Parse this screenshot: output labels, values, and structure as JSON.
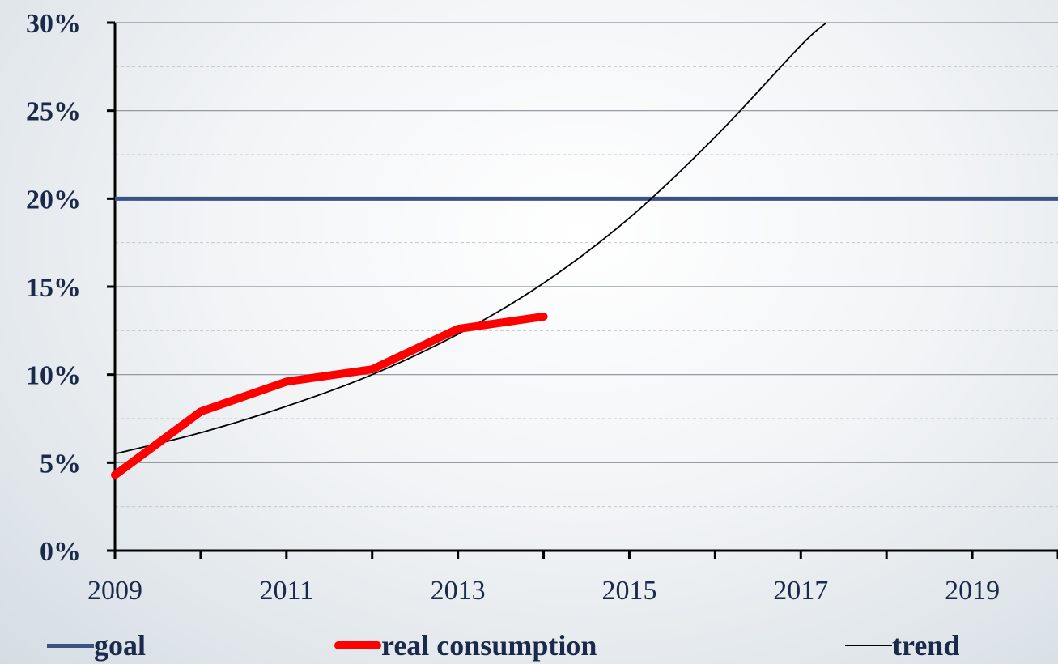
{
  "chart_data": {
    "type": "line",
    "xlim": [
      2009,
      2020
    ],
    "ylim": [
      0,
      30
    ],
    "y_ticks": [
      "0%",
      "5%",
      "10%",
      "15%",
      "20%",
      "25%",
      "30%"
    ],
    "x_ticks": [
      "2009",
      "2011",
      "2013",
      "2015",
      "2017",
      "2019"
    ],
    "x_tick_values": [
      2009,
      2011,
      2013,
      2015,
      2017,
      2019
    ],
    "grid": true,
    "legend_position": "bottom",
    "series": [
      {
        "name": "goal",
        "color": "#3b5287",
        "x": [
          2009,
          2020
        ],
        "y": [
          20,
          20
        ]
      },
      {
        "name": "real consumption",
        "color": "#ff0000",
        "x": [
          2009,
          2010,
          2011,
          2012,
          2013,
          2014
        ],
        "y": [
          4.3,
          7.9,
          9.6,
          10.3,
          12.6,
          13.3
        ]
      },
      {
        "name": "trend",
        "color": "#000000",
        "x": [
          2009,
          2010,
          2011,
          2012,
          2013,
          2014,
          2015,
          2016,
          2017,
          2017.3
        ],
        "y": [
          5.5,
          6.7,
          8.2,
          10.0,
          12.3,
          15.2,
          18.9,
          23.5,
          28.7,
          30
        ]
      }
    ]
  }
}
